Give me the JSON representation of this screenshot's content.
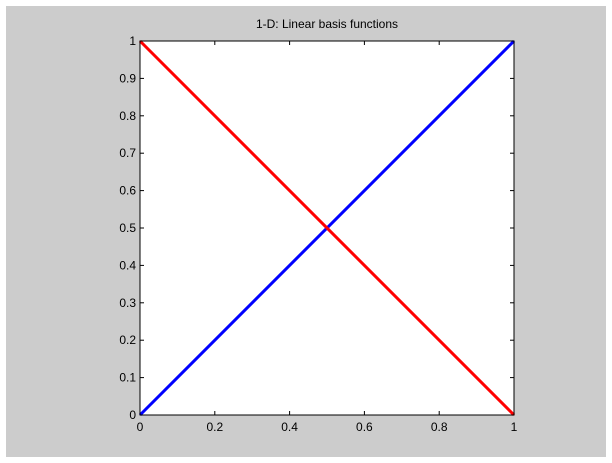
{
  "colors": {
    "figure_bg": "#cccccc",
    "axes_bg": "#ffffff",
    "axis": "#000000"
  },
  "chart_data": {
    "type": "line",
    "title": "1-D: Linear basis functions",
    "xlabel": "",
    "ylabel": "",
    "xlim": [
      0,
      1
    ],
    "ylim": [
      0,
      1
    ],
    "grid": false,
    "box": true,
    "x_ticks": [
      0,
      0.2,
      0.4,
      0.6,
      0.8,
      1
    ],
    "x_tick_labels": [
      "0",
      "0.2",
      "0.4",
      "0.6",
      "0.8",
      "1"
    ],
    "y_ticks": [
      0,
      0.1,
      0.2,
      0.3,
      0.4,
      0.5,
      0.6,
      0.7,
      0.8,
      0.9,
      1
    ],
    "y_tick_labels": [
      "0",
      "0.1",
      "0.2",
      "0.3",
      "0.4",
      "0.5",
      "0.6",
      "0.7",
      "0.8",
      "0.9",
      "1"
    ],
    "series": [
      {
        "color": "#0000ff",
        "x": [
          0,
          1
        ],
        "y": [
          0,
          1
        ]
      },
      {
        "color": "#ff0000",
        "x": [
          0,
          1
        ],
        "y": [
          1,
          0
        ]
      }
    ]
  }
}
